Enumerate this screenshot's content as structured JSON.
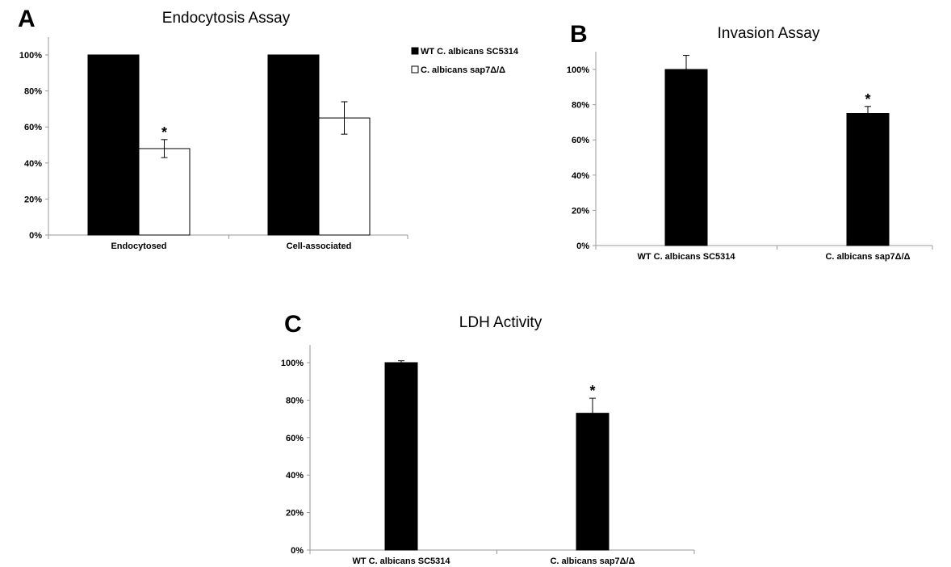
{
  "chart_data": [
    {
      "type": "bar",
      "panel": "A",
      "title": "Endocytosis Assay",
      "categories": [
        "Endocytosed",
        "Cell-associated"
      ],
      "series": [
        {
          "name": "WT C. albicans SC5314",
          "fill": "#000000",
          "values": [
            100,
            100
          ],
          "errors": [
            0,
            0
          ]
        },
        {
          "name": "C. albicans sap7Δ/Δ",
          "fill": "#ffffff",
          "values": [
            48,
            65
          ],
          "errors": [
            5,
            9
          ]
        }
      ],
      "significance": [
        {
          "category": 0,
          "series": 1,
          "mark": "*"
        }
      ],
      "ylim": [
        0,
        100
      ],
      "yticks": [
        "0%",
        "20%",
        "40%",
        "60%",
        "80%",
        "100%"
      ],
      "legend": "top-right"
    },
    {
      "type": "bar",
      "panel": "B",
      "title": "Invasion Assay",
      "categories": [
        "WT C. albicans SC5314",
        "C. albicans sap7Δ/Δ"
      ],
      "values": [
        100,
        75
      ],
      "errors": [
        8,
        4
      ],
      "significance": [
        {
          "category": 1,
          "mark": "*"
        }
      ],
      "ylim": [
        0,
        100
      ],
      "yticks": [
        "0%",
        "20%",
        "40%",
        "60%",
        "80%",
        "100%"
      ]
    },
    {
      "type": "bar",
      "panel": "C",
      "title": "LDH Activity",
      "categories": [
        "WT C. albicans SC5314",
        "C. albicans sap7Δ/Δ"
      ],
      "values": [
        100,
        73
      ],
      "errors": [
        1,
        8
      ],
      "significance": [
        {
          "category": 1,
          "mark": "*"
        }
      ],
      "ylim": [
        0,
        100
      ],
      "yticks": [
        "0%",
        "20%",
        "40%",
        "60%",
        "80%",
        "100%"
      ]
    }
  ]
}
